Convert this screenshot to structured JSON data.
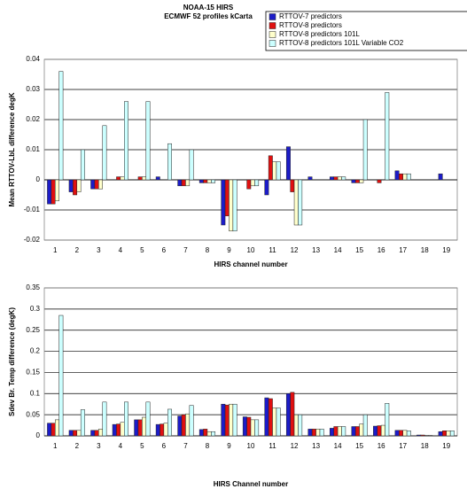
{
  "chart_data": [
    {
      "type": "bar",
      "title": "NOAA-15 HIRS",
      "subtitle": "ECMWF 52 profiles kCarta",
      "x_label": "HIRS channel number",
      "y_label": "Mean RTTOV-LbL difference degK",
      "legend": "top-right",
      "grid": true,
      "categories": [
        "1",
        "2",
        "3",
        "4",
        "5",
        "6",
        "7",
        "8",
        "9",
        "10",
        "11",
        "12",
        "13",
        "14",
        "15",
        "16",
        "17",
        "18",
        "19"
      ],
      "ylim": [
        -0.02,
        0.04
      ],
      "yticks": [
        -0.02,
        -0.01,
        0,
        0.01,
        0.02,
        0.03,
        0.04
      ],
      "series": [
        {
          "name": "RTTOV-7 predictors",
          "color": "#1c1cc8",
          "values": [
            -0.008,
            -0.004,
            -0.003,
            0,
            0,
            0.001,
            -0.002,
            -0.001,
            -0.015,
            0,
            -0.005,
            0.011,
            0.001,
            0.001,
            -0.001,
            0,
            0.003,
            0,
            0.002
          ]
        },
        {
          "name": "RTTOV-8 predictors",
          "color": "#e01010",
          "values": [
            -0.008,
            -0.005,
            -0.003,
            0.001,
            0.001,
            0,
            -0.002,
            -0.001,
            -0.012,
            -0.003,
            0.008,
            -0.004,
            0,
            0.001,
            -0.001,
            -0.001,
            0.002,
            0,
            0
          ]
        },
        {
          "name": "RTTOV-8 predictors 101L",
          "color": "#ffffcc",
          "values": [
            -0.007,
            -0.004,
            -0.003,
            0.001,
            0.001,
            0,
            -0.002,
            -0.001,
            -0.017,
            -0.002,
            0.006,
            -0.015,
            0,
            0.001,
            -0.001,
            0,
            0.002,
            0,
            0
          ]
        },
        {
          "name": "RTTOV-8 predictors 101L Variable CO2",
          "color": "#ccffff",
          "values": [
            0.036,
            0.01,
            0.018,
            0.026,
            0.026,
            0.012,
            0.01,
            -0.001,
            -0.017,
            -0.002,
            0.006,
            -0.015,
            0,
            0.001,
            0.02,
            0.029,
            0.002,
            0,
            0
          ]
        }
      ]
    },
    {
      "type": "bar",
      "x_label": "HIRS Channel number",
      "y_label": "Sdev Br. Temp difference (degK)",
      "grid": true,
      "categories": [
        "1",
        "2",
        "3",
        "4",
        "5",
        "6",
        "7",
        "8",
        "9",
        "10",
        "11",
        "12",
        "13",
        "14",
        "15",
        "16",
        "17",
        "18",
        "19"
      ],
      "ylim": [
        0,
        0.35
      ],
      "yticks": [
        0,
        0.05,
        0.1,
        0.15,
        0.2,
        0.25,
        0.3,
        0.35
      ],
      "series": [
        {
          "color": "#1c1cc8",
          "values": [
            0.03,
            0.013,
            0.013,
            0.027,
            0.038,
            0.027,
            0.047,
            0.015,
            0.075,
            0.045,
            0.09,
            0.1,
            0.016,
            0.018,
            0.022,
            0.023,
            0.013,
            0.002,
            0.01
          ]
        },
        {
          "color": "#e01010",
          "values": [
            0.03,
            0.013,
            0.013,
            0.028,
            0.038,
            0.028,
            0.05,
            0.016,
            0.073,
            0.044,
            0.088,
            0.103,
            0.016,
            0.022,
            0.022,
            0.024,
            0.013,
            0.002,
            0.012
          ]
        },
        {
          "color": "#ffffcc",
          "values": [
            0.038,
            0.013,
            0.016,
            0.032,
            0.044,
            0.03,
            0.052,
            0.01,
            0.075,
            0.038,
            0.066,
            0.05,
            0.016,
            0.022,
            0.028,
            0.025,
            0.013,
            0.001,
            0.012
          ]
        },
        {
          "color": "#ccffff",
          "values": [
            0.285,
            0.062,
            0.08,
            0.08,
            0.08,
            0.063,
            0.072,
            0.01,
            0.075,
            0.038,
            0.066,
            0.05,
            0.016,
            0.022,
            0.05,
            0.077,
            0.012,
            0.001,
            0.012
          ]
        }
      ]
    }
  ]
}
